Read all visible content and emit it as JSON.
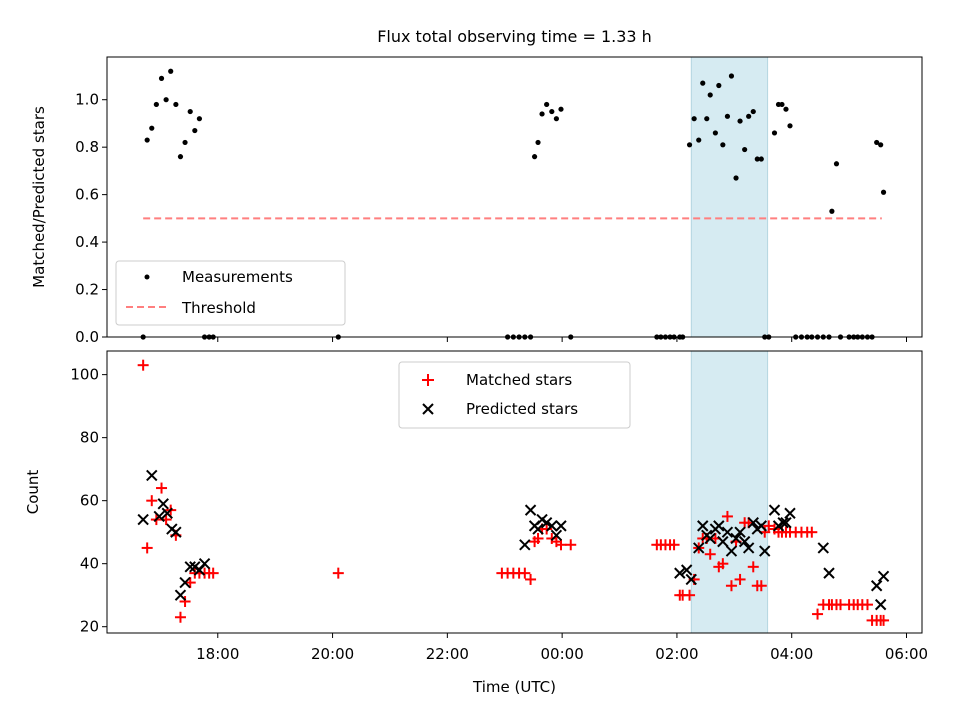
{
  "figure": {
    "title": "Flux total observing time = 1.33 h",
    "xlabel": "Time (UTC)",
    "xtick_labels": [
      "18:00",
      "20:00",
      "22:00",
      "00:00",
      "02:00",
      "04:00",
      "06:00"
    ]
  },
  "colors": {
    "measurement": "#000000",
    "threshold": "#ff7f7f",
    "matched": "#ff0000",
    "predicted": "#000000",
    "highlight": "#add8e6"
  },
  "chart_data": [
    {
      "type": "scatter",
      "panel": "top",
      "ylabel": "Matched/Predicted stars",
      "xlim": [
        16.07,
        30.27
      ],
      "ylim": [
        0.0,
        1.18
      ],
      "yticks": [
        0.0,
        0.2,
        0.4,
        0.6,
        0.8,
        1.0
      ],
      "ytick_labels": [
        "0.0",
        "0.2",
        "0.4",
        "0.6",
        "0.8",
        "1.0"
      ],
      "x_unit": "hours UTC, values past 24 continue into the next day",
      "legend": {
        "placement": "lower-left",
        "entries": [
          "Measurements",
          "Threshold"
        ]
      },
      "highlight_span": [
        26.25,
        27.58
      ],
      "threshold": {
        "name": "Threshold",
        "value": 0.5,
        "x": [
          16.7,
          29.57
        ]
      },
      "series": [
        {
          "name": "Measurements",
          "x": [
            16.7,
            16.77,
            16.85,
            16.93,
            17.02,
            17.1,
            17.18,
            17.27,
            17.35,
            17.43,
            17.52,
            17.6,
            17.68,
            17.77,
            17.85,
            17.92,
            20.1,
            23.05,
            23.15,
            23.25,
            23.35,
            23.45,
            23.52,
            23.58,
            23.65,
            23.73,
            23.82,
            23.9,
            23.98,
            24.15,
            25.65,
            25.72,
            25.8,
            25.88,
            25.95,
            26.05,
            26.1,
            26.22,
            26.3,
            26.38,
            26.45,
            26.52,
            26.58,
            26.67,
            26.73,
            26.8,
            26.88,
            26.95,
            27.03,
            27.1,
            27.18,
            27.25,
            27.33,
            27.4,
            27.47,
            27.53,
            27.6,
            27.7,
            27.77,
            27.83,
            27.9,
            27.97,
            28.07,
            28.17,
            28.27,
            28.35,
            28.45,
            28.55,
            28.65,
            28.7,
            28.78,
            28.85,
            29.0,
            29.08,
            29.15,
            29.23,
            29.32,
            29.4,
            29.48,
            29.55,
            29.6
          ],
          "y": [
            0.0,
            0.83,
            0.88,
            0.98,
            1.09,
            1.0,
            1.12,
            0.98,
            0.76,
            0.82,
            0.95,
            0.87,
            0.92,
            0.0,
            0.0,
            0.0,
            0.0,
            0.0,
            0.0,
            0.0,
            0.0,
            0.0,
            0.76,
            0.82,
            0.94,
            0.98,
            0.95,
            0.92,
            0.96,
            0.0,
            0.0,
            0.0,
            0.0,
            0.0,
            0.0,
            0.0,
            0.0,
            0.81,
            0.92,
            0.83,
            1.07,
            0.92,
            1.02,
            0.86,
            1.06,
            0.81,
            0.93,
            1.1,
            0.67,
            0.91,
            0.79,
            0.93,
            0.95,
            0.75,
            0.75,
            0.0,
            0.0,
            0.86,
            0.98,
            0.98,
            0.96,
            0.89,
            0.0,
            0.0,
            0.0,
            0.0,
            0.0,
            0.0,
            0.0,
            0.53,
            0.73,
            0.0,
            0.0,
            0.0,
            0.0,
            0.0,
            0.0,
            0.0,
            0.82,
            0.81,
            0.61
          ]
        }
      ]
    },
    {
      "type": "scatter",
      "panel": "bottom",
      "ylabel": "Count",
      "xlim": [
        16.07,
        30.27
      ],
      "ylim": [
        18.0,
        107.5
      ],
      "yticks": [
        20,
        40,
        60,
        80,
        100
      ],
      "ytick_labels": [
        "20",
        "40",
        "60",
        "80",
        "100"
      ],
      "x_unit": "hours UTC, values past 24 continue into the next day",
      "legend": {
        "placement": "upper-center",
        "entries": [
          "Matched stars",
          "Predicted stars"
        ]
      },
      "highlight_span": [
        26.25,
        27.58
      ],
      "series": [
        {
          "name": "Matched stars",
          "marker": "plus",
          "x": [
            16.7,
            16.77,
            16.85,
            16.93,
            17.02,
            17.1,
            17.18,
            17.27,
            17.35,
            17.43,
            17.52,
            17.6,
            17.68,
            17.77,
            17.85,
            17.92,
            20.1,
            22.95,
            23.05,
            23.15,
            23.25,
            23.35,
            23.45,
            23.52,
            23.58,
            23.65,
            23.73,
            23.82,
            23.9,
            23.98,
            24.15,
            25.65,
            25.72,
            25.8,
            25.88,
            25.95,
            26.05,
            26.1,
            26.22,
            26.3,
            26.38,
            26.45,
            26.52,
            26.58,
            26.67,
            26.73,
            26.8,
            26.88,
            26.95,
            27.03,
            27.1,
            27.18,
            27.25,
            27.33,
            27.4,
            27.47,
            27.53,
            27.6,
            27.7,
            27.77,
            27.83,
            27.9,
            27.97,
            28.07,
            28.17,
            28.27,
            28.35,
            28.45,
            28.55,
            28.65,
            28.7,
            28.78,
            28.85,
            29.0,
            29.08,
            29.15,
            29.23,
            29.32,
            29.4,
            29.48,
            29.55,
            29.6
          ],
          "y": [
            103,
            45,
            60,
            54,
            64,
            54,
            57,
            49,
            23,
            28,
            34,
            37,
            37,
            37,
            37,
            37,
            37,
            37,
            37,
            37,
            37,
            37,
            35,
            47,
            48,
            51,
            51,
            48,
            47,
            46,
            46,
            46,
            46,
            46,
            46,
            46,
            30,
            30,
            30,
            35,
            45,
            48,
            48,
            43,
            48,
            39,
            40,
            55,
            33,
            47,
            35,
            53,
            53,
            39,
            33,
            33,
            50,
            52,
            51,
            50,
            50,
            50,
            50,
            50,
            50,
            50,
            50,
            24,
            27,
            27,
            27,
            27,
            27,
            27,
            27,
            27,
            27,
            27,
            22,
            22,
            22,
            22
          ]
        },
        {
          "name": "Predicted stars",
          "marker": "x",
          "x": [
            16.7,
            16.85,
            16.98,
            17.05,
            17.12,
            17.2,
            17.27,
            17.35,
            17.43,
            17.52,
            17.6,
            17.68,
            17.77,
            23.35,
            23.45,
            23.52,
            23.58,
            23.65,
            23.73,
            23.82,
            23.9,
            23.98,
            26.05,
            26.17,
            26.25,
            26.38,
            26.45,
            26.52,
            26.58,
            26.67,
            26.73,
            26.8,
            26.88,
            26.95,
            27.03,
            27.1,
            27.18,
            27.25,
            27.33,
            27.4,
            27.47,
            27.53,
            27.7,
            27.77,
            27.85,
            27.9,
            27.97,
            28.55,
            28.65,
            29.48,
            29.55,
            29.6
          ],
          "y": [
            54,
            68,
            55,
            59,
            56,
            51,
            50,
            30,
            34,
            39,
            39,
            38,
            40,
            46,
            57,
            52,
            51,
            54,
            53,
            52,
            49,
            52,
            37,
            38,
            35,
            45,
            52,
            49,
            48,
            51,
            52,
            47,
            50,
            44,
            48,
            50,
            47,
            45,
            53,
            51,
            52,
            44,
            57,
            52,
            53,
            53,
            56,
            45,
            37,
            33,
            27,
            36
          ]
        }
      ]
    }
  ]
}
